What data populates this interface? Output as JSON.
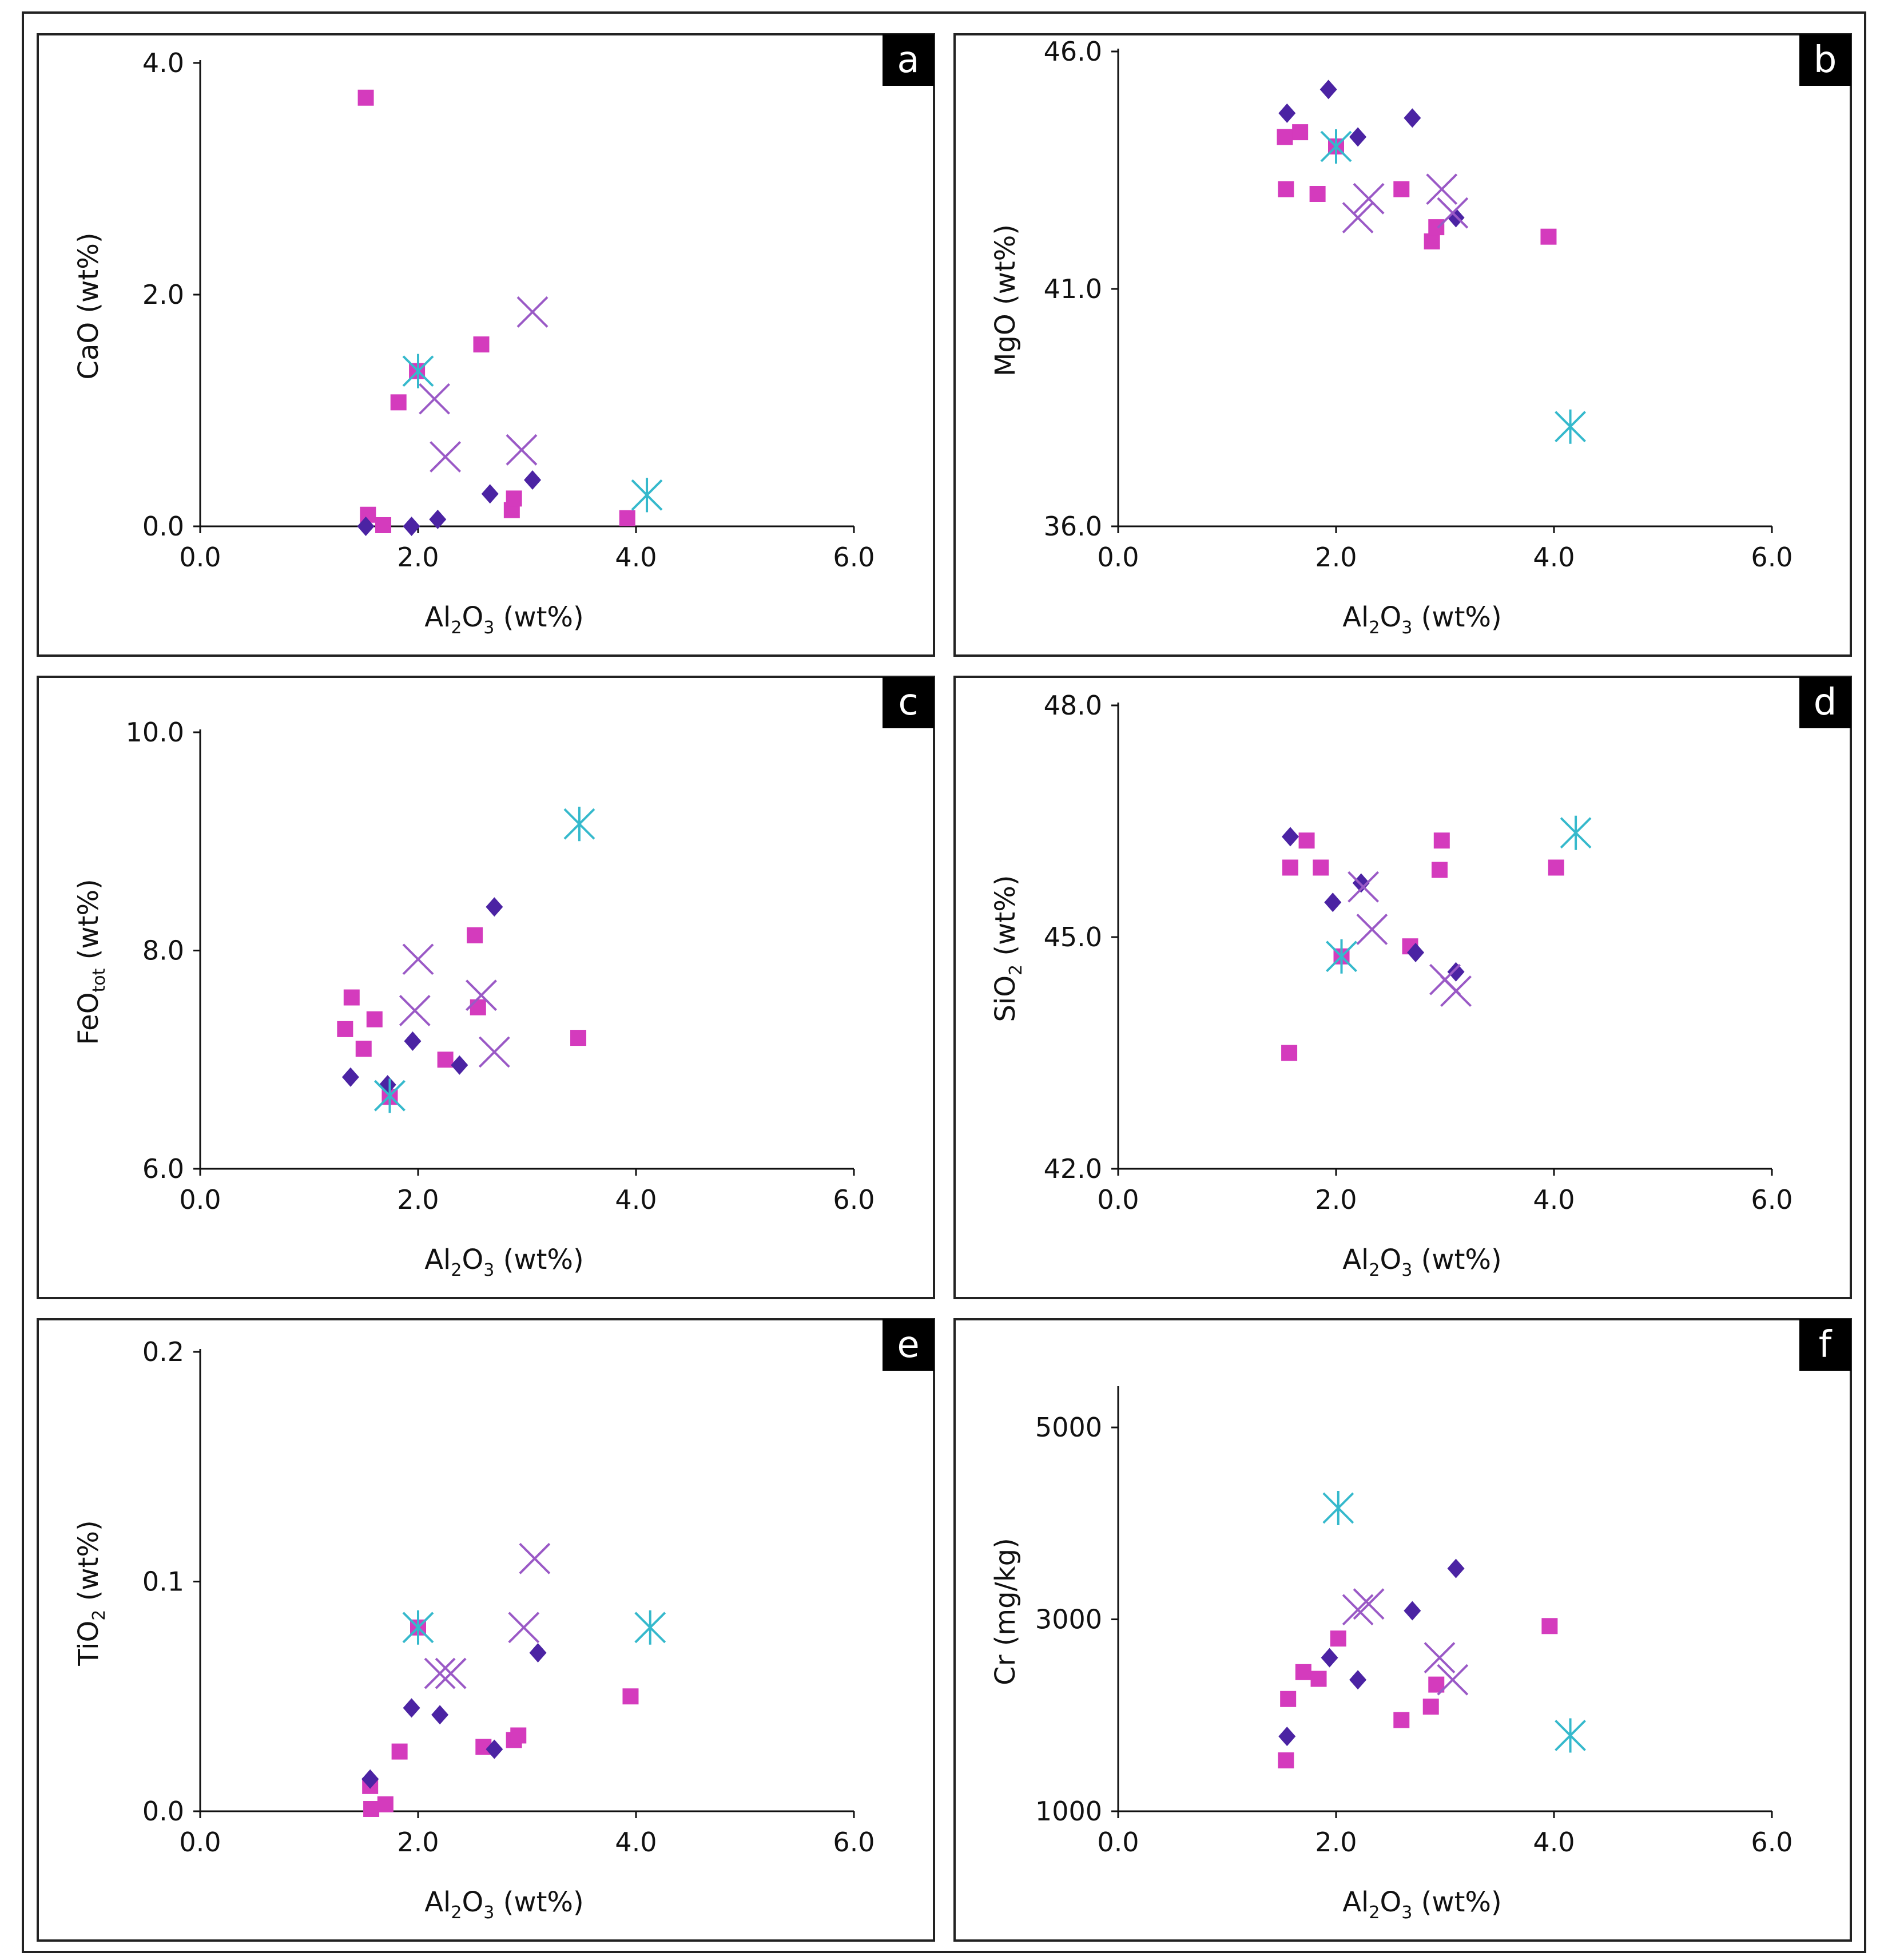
{
  "figure": {
    "series_styles": {
      "diamond": {
        "color": "#4b23a3",
        "shape": "diamond"
      },
      "square": {
        "color": "#d43bbd",
        "shape": "square"
      },
      "cross": {
        "color": "#9a59c6",
        "shape": "x-cross"
      },
      "asterisk": {
        "color": "#35b9cc",
        "shape": "asterisk"
      }
    }
  },
  "chart_data": [
    {
      "type": "scatter",
      "panel_label": "a",
      "xlabel": {
        "main": "Al",
        "sub1": "2",
        "mid": "O",
        "sub2": "3",
        "tail": " (wt%)"
      },
      "ylabel": {
        "main": "CaO",
        "sub": "",
        "tail": " (wt%)"
      },
      "xlim": [
        0,
        6
      ],
      "ylim": [
        0,
        4
      ],
      "xticks": [
        "0.0",
        "2.0",
        "4.0",
        "6.0"
      ],
      "yticks": [
        "0.0",
        "2.0",
        "4.0"
      ],
      "series": [
        {
          "name": "diamond",
          "x": [
            1.52,
            1.94,
            2.18,
            2.66,
            3.05
          ],
          "y": [
            0.0,
            0.0,
            0.06,
            0.28,
            0.4
          ]
        },
        {
          "name": "square",
          "x": [
            1.52,
            1.54,
            1.68,
            1.82,
            1.99,
            2.58,
            2.86,
            2.88,
            3.92
          ],
          "y": [
            3.7,
            0.1,
            0.01,
            1.07,
            1.34,
            1.57,
            0.14,
            0.24,
            0.07
          ]
        },
        {
          "name": "cross",
          "x": [
            2.15,
            2.25,
            2.95,
            3.05
          ],
          "y": [
            1.1,
            0.6,
            0.66,
            1.85
          ]
        },
        {
          "name": "asterisk",
          "x": [
            2.0,
            4.1
          ],
          "y": [
            1.34,
            0.27
          ]
        }
      ]
    },
    {
      "type": "scatter",
      "panel_label": "b",
      "xlabel": {
        "main": "Al",
        "sub1": "2",
        "mid": "O",
        "sub2": "3",
        "tail": " (wt%)"
      },
      "ylabel": {
        "main": "MgO",
        "sub": "",
        "tail": " (wt%)"
      },
      "xlim": [
        0,
        6
      ],
      "ylim": [
        36,
        46
      ],
      "xticks": [
        "0.0",
        "2.0",
        "4.0",
        "6.0"
      ],
      "yticks": [
        "36.0",
        "41.0",
        "46.0"
      ],
      "series": [
        {
          "name": "diamond",
          "x": [
            1.55,
            1.93,
            2.2,
            2.7,
            3.1
          ],
          "y": [
            44.7,
            45.2,
            44.2,
            44.6,
            42.5
          ]
        },
        {
          "name": "square",
          "x": [
            1.53,
            1.54,
            1.67,
            1.83,
            2.0,
            2.6,
            2.88,
            2.92,
            3.95
          ],
          "y": [
            44.2,
            43.1,
            44.3,
            43.0,
            44.0,
            43.1,
            42.0,
            42.3,
            42.1
          ]
        },
        {
          "name": "cross",
          "x": [
            2.2,
            2.3,
            2.97,
            3.07
          ],
          "y": [
            42.5,
            42.9,
            43.1,
            42.6
          ]
        },
        {
          "name": "asterisk",
          "x": [
            2.0,
            4.15
          ],
          "y": [
            44.0,
            38.1
          ]
        }
      ]
    },
    {
      "type": "scatter",
      "panel_label": "c",
      "xlabel": {
        "main": "Al",
        "sub1": "2",
        "mid": "O",
        "sub2": "3",
        "tail": " (wt%)"
      },
      "ylabel": {
        "main": "FeO",
        "sub": "tot",
        "tail": " (wt%)"
      },
      "xlim": [
        0,
        6
      ],
      "ylim": [
        6,
        10
      ],
      "xticks": [
        "0.0",
        "2.0",
        "4.0",
        "6.0"
      ],
      "yticks": [
        "6.0",
        "8.0",
        "10.0"
      ],
      "series": [
        {
          "name": "diamond",
          "x": [
            1.38,
            1.72,
            1.95,
            2.38,
            2.7
          ],
          "y": [
            6.84,
            6.77,
            7.17,
            6.95,
            8.4
          ]
        },
        {
          "name": "square",
          "x": [
            1.33,
            1.39,
            1.5,
            1.6,
            1.74,
            2.25,
            2.52,
            2.55,
            3.47
          ],
          "y": [
            7.28,
            7.57,
            7.1,
            7.37,
            6.66,
            7.0,
            8.14,
            7.48,
            7.2
          ]
        },
        {
          "name": "cross",
          "x": [
            1.97,
            2.0,
            2.58,
            2.7
          ],
          "y": [
            7.45,
            7.92,
            7.59,
            7.07
          ]
        },
        {
          "name": "asterisk",
          "x": [
            1.74,
            3.48
          ],
          "y": [
            6.67,
            9.16
          ]
        }
      ]
    },
    {
      "type": "scatter",
      "panel_label": "d",
      "xlabel": {
        "main": "Al",
        "sub1": "2",
        "mid": "O",
        "sub2": "3",
        "tail": " (wt%)"
      },
      "ylabel": {
        "main": "SiO",
        "sub": "2",
        "tail": " (wt%)"
      },
      "xlim": [
        0,
        6
      ],
      "ylim": [
        42,
        48
      ],
      "xticks": [
        "0.0",
        "2.0",
        "4.0",
        "6.0"
      ],
      "yticks": [
        "42.0",
        "45.0",
        "48.0"
      ],
      "series": [
        {
          "name": "diamond",
          "x": [
            1.58,
            1.97,
            2.23,
            2.73,
            3.1
          ],
          "y": [
            46.3,
            45.45,
            45.7,
            44.8,
            44.55
          ]
        },
        {
          "name": "square",
          "x": [
            1.57,
            1.58,
            1.73,
            1.86,
            2.05,
            2.68,
            2.95,
            2.97,
            4.02
          ],
          "y": [
            43.5,
            45.9,
            46.25,
            45.9,
            44.75,
            44.88,
            45.87,
            46.25,
            45.9
          ]
        },
        {
          "name": "cross",
          "x": [
            2.25,
            2.33,
            3.0,
            3.1
          ],
          "y": [
            45.65,
            45.1,
            44.45,
            44.3
          ]
        },
        {
          "name": "asterisk",
          "x": [
            2.05,
            4.2
          ],
          "y": [
            44.75,
            46.35
          ]
        }
      ]
    },
    {
      "type": "scatter",
      "panel_label": "e",
      "xlabel": {
        "main": "Al",
        "sub1": "2",
        "mid": "O",
        "sub2": "3",
        "tail": " (wt%)"
      },
      "ylabel": {
        "main": "TiO",
        "sub": "2",
        "tail": " (wt%)"
      },
      "xlim": [
        0,
        6
      ],
      "ylim": [
        0,
        0.2
      ],
      "xticks": [
        "0.0",
        "2.0",
        "4.0",
        "6.0"
      ],
      "yticks": [
        "0.0",
        "0.1",
        "0.2"
      ],
      "series": [
        {
          "name": "diamond",
          "x": [
            1.56,
            1.94,
            2.2,
            2.7,
            3.1
          ],
          "y": [
            0.014,
            0.045,
            0.042,
            0.027,
            0.069
          ]
        },
        {
          "name": "square",
          "x": [
            1.56,
            1.57,
            1.7,
            1.83,
            2.0,
            2.6,
            2.88,
            2.92,
            3.95
          ],
          "y": [
            0.011,
            0.001,
            0.003,
            0.026,
            0.08,
            0.028,
            0.031,
            0.033,
            0.05
          ]
        },
        {
          "name": "cross",
          "x": [
            2.2,
            2.3,
            2.97,
            3.07
          ],
          "y": [
            0.06,
            0.06,
            0.08,
            0.11
          ]
        },
        {
          "name": "asterisk",
          "x": [
            2.0,
            4.13
          ],
          "y": [
            0.08,
            0.08
          ]
        }
      ]
    },
    {
      "type": "scatter",
      "panel_label": "f",
      "xlabel": {
        "main": "Al",
        "sub1": "2",
        "mid": "O",
        "sub2": "3",
        "tail": " (wt%)"
      },
      "ylabel": {
        "main": "Cr (mg/kg)",
        "sub": "",
        "tail": ""
      },
      "xlim": [
        0,
        6
      ],
      "ylim": [
        1000,
        5400
      ],
      "xticks": [
        "0.0",
        "2.0",
        "4.0",
        "6.0"
      ],
      "yticks": [
        "1000",
        "3000",
        "5000"
      ],
      "series": [
        {
          "name": "diamond",
          "x": [
            1.55,
            1.94,
            2.2,
            2.7,
            3.1
          ],
          "y": [
            1780,
            2600,
            2370,
            3090,
            3530
          ]
        },
        {
          "name": "square",
          "x": [
            1.54,
            1.56,
            1.7,
            1.84,
            2.02,
            2.6,
            2.87,
            2.92,
            3.96
          ],
          "y": [
            1530,
            2170,
            2450,
            2380,
            2800,
            1950,
            2090,
            2320,
            2930
          ]
        },
        {
          "name": "cross",
          "x": [
            2.2,
            2.3,
            2.95,
            3.07
          ],
          "y": [
            3100,
            3160,
            2600,
            2370
          ]
        },
        {
          "name": "asterisk",
          "x": [
            2.02,
            4.15
          ],
          "y": [
            4160,
            1790
          ]
        }
      ]
    }
  ]
}
